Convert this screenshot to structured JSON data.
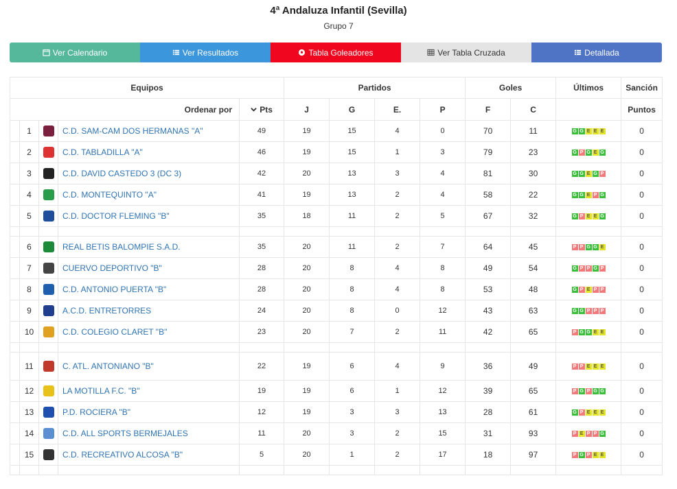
{
  "header": {
    "title": "4ª Andaluza Infantil (Sevilla)",
    "subtitle": "Grupo 7"
  },
  "buttons": [
    {
      "label": "Ver Calendario",
      "icon": "calendar-icon",
      "color": "#55b89a"
    },
    {
      "label": "Ver Resultados",
      "icon": "list-icon",
      "color": "#3c96dc"
    },
    {
      "label": "Tabla Goleadores",
      "icon": "soccer-ball-icon",
      "color": "#f0061e"
    },
    {
      "label": "Ver Tabla Cruzada",
      "icon": "grid-icon",
      "color": "#e4e4e4"
    },
    {
      "label": "Detallada",
      "icon": "table-icon",
      "color": "#4f74c5"
    }
  ],
  "table": {
    "group_headers": {
      "equipos": "Equipos",
      "partidos": "Partidos",
      "goles": "Goles",
      "ultimos": "Últimos",
      "sancion": "Sanción"
    },
    "sub_headers": {
      "ordenar": "Ordenar por",
      "pts": "Pts",
      "j": "J",
      "g": "G",
      "e": "E.",
      "p": "P",
      "f": "F",
      "c": "C",
      "puntos": "Puntos"
    },
    "rows": [
      {
        "pos": "1",
        "team": "C.D. SAM-CAM DOS HERMANAS \"A\"",
        "pts": "49",
        "j": "19",
        "g": "15",
        "e": "4",
        "p": "0",
        "f": "70",
        "c": "11",
        "last": [
          "G",
          "G",
          "E",
          "E",
          "E"
        ],
        "sancion": "0"
      },
      {
        "pos": "2",
        "team": "C.D. TABLADILLA \"A\"",
        "pts": "46",
        "j": "19",
        "g": "15",
        "e": "1",
        "p": "3",
        "f": "79",
        "c": "23",
        "last": [
          "G",
          "P",
          "G",
          "E",
          "G"
        ],
        "sancion": "0"
      },
      {
        "pos": "3",
        "team": "C.D. DAVID CASTEDO 3 (DC 3)",
        "pts": "42",
        "j": "20",
        "g": "13",
        "e": "3",
        "p": "4",
        "f": "81",
        "c": "30",
        "last": [
          "G",
          "G",
          "E",
          "G",
          "P"
        ],
        "sancion": "0"
      },
      {
        "pos": "4",
        "team": "C.D. MONTEQUINTO \"A\"",
        "pts": "41",
        "j": "19",
        "g": "13",
        "e": "2",
        "p": "4",
        "f": "58",
        "c": "22",
        "last": [
          "G",
          "G",
          "E",
          "P",
          "G"
        ],
        "sancion": "0"
      },
      {
        "pos": "5",
        "team": "C.D. DOCTOR FLEMING \"B\"",
        "pts": "35",
        "j": "18",
        "g": "11",
        "e": "2",
        "p": "5",
        "f": "67",
        "c": "32",
        "last": [
          "G",
          "P",
          "E",
          "E",
          "G"
        ],
        "sancion": "0"
      },
      {
        "pos": "6",
        "team": "REAL BETIS BALOMPIE S.A.D.",
        "pts": "35",
        "j": "20",
        "g": "11",
        "e": "2",
        "p": "7",
        "f": "64",
        "c": "45",
        "last": [
          "P",
          "P",
          "G",
          "G",
          "E"
        ],
        "sancion": "0"
      },
      {
        "pos": "7",
        "team": "CUERVO DEPORTIVO \"B\"",
        "pts": "28",
        "j": "20",
        "g": "8",
        "e": "4",
        "p": "8",
        "f": "49",
        "c": "54",
        "last": [
          "G",
          "P",
          "P",
          "G",
          "P"
        ],
        "sancion": "0"
      },
      {
        "pos": "8",
        "team": "C.D. ANTONIO PUERTA \"B\"",
        "pts": "28",
        "j": "20",
        "g": "8",
        "e": "4",
        "p": "8",
        "f": "53",
        "c": "48",
        "last": [
          "G",
          "P",
          "E",
          "P",
          "P"
        ],
        "sancion": "0"
      },
      {
        "pos": "9",
        "team": "A.C.D. ENTRETORRES",
        "pts": "24",
        "j": "20",
        "g": "8",
        "e": "0",
        "p": "12",
        "f": "43",
        "c": "63",
        "last": [
          "G",
          "G",
          "P",
          "P",
          "P"
        ],
        "sancion": "0"
      },
      {
        "pos": "10",
        "team": "C.D. COLEGIO CLARET \"B\"",
        "pts": "23",
        "j": "20",
        "g": "7",
        "e": "2",
        "p": "11",
        "f": "42",
        "c": "65",
        "last": [
          "P",
          "G",
          "G",
          "E",
          "E"
        ],
        "sancion": "0"
      },
      {
        "pos": "11",
        "team": "C. ATL. ANTONIANO \"B\"",
        "pts": "22",
        "j": "19",
        "g": "6",
        "e": "4",
        "p": "9",
        "f": "36",
        "c": "49",
        "last": [
          "P",
          "P",
          "E",
          "E",
          "E"
        ],
        "sancion": "0"
      },
      {
        "pos": "12",
        "team": "LA MOTILLA F.C. \"B\"",
        "pts": "19",
        "j": "19",
        "g": "6",
        "e": "1",
        "p": "12",
        "f": "39",
        "c": "65",
        "last": [
          "P",
          "G",
          "P",
          "G",
          "G"
        ],
        "sancion": "0"
      },
      {
        "pos": "13",
        "team": "P.D. ROCIERA \"B\"",
        "pts": "12",
        "j": "19",
        "g": "3",
        "e": "3",
        "p": "13",
        "f": "28",
        "c": "61",
        "last": [
          "G",
          "P",
          "E",
          "E",
          "E"
        ],
        "sancion": "0"
      },
      {
        "pos": "14",
        "team": "C.D. ALL SPORTS BERMEJALES",
        "pts": "11",
        "j": "20",
        "g": "3",
        "e": "2",
        "p": "15",
        "f": "31",
        "c": "93",
        "last": [
          "P",
          "E",
          "P",
          "P",
          "G"
        ],
        "sancion": "0"
      },
      {
        "pos": "15",
        "team": "C.D. RECREATIVO ALCOSA \"B\"",
        "pts": "5",
        "j": "20",
        "g": "1",
        "e": "2",
        "p": "17",
        "f": "18",
        "c": "97",
        "last": [
          "P",
          "G",
          "P",
          "E",
          "E"
        ],
        "sancion": "0"
      }
    ]
  },
  "colors": {
    "win": "#3bbf3b",
    "draw": "#e3e32a",
    "loss": "#f27a7a",
    "link": "#2f73b2"
  }
}
